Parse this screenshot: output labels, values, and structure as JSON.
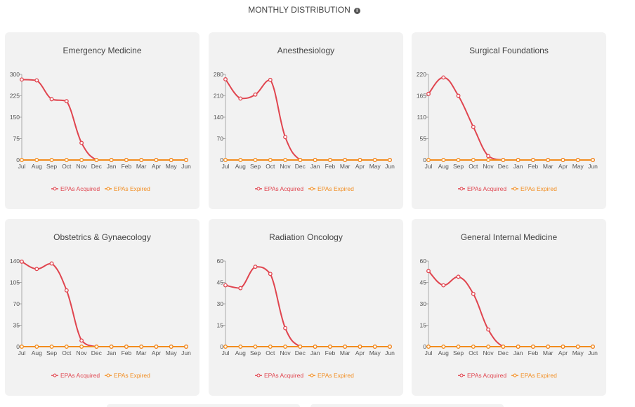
{
  "header": {
    "title": "MONTHLY DISTRIBUTION",
    "info_icon": "info-circle-icon"
  },
  "colors": {
    "acquired": "#e0454f",
    "expired": "#f28c1e"
  },
  "chart_data": [
    {
      "type": "line",
      "title": "Emergency Medicine",
      "categories": [
        "Jul",
        "Aug",
        "Sep",
        "Oct",
        "Nov",
        "Dec",
        "Jan",
        "Feb",
        "Mar",
        "Apr",
        "May",
        "Jun"
      ],
      "ylim": [
        0,
        300
      ],
      "yticks": [
        "0",
        "75",
        "150",
        "225",
        "300"
      ],
      "series": [
        {
          "name": "EPAs Acquired",
          "values": [
            282,
            279,
            213,
            206,
            60,
            0,
            0,
            0,
            0,
            0,
            0,
            0
          ]
        },
        {
          "name": "EPAs Expired",
          "values": [
            0,
            0,
            0,
            0,
            0,
            0,
            0,
            0,
            0,
            0,
            0,
            0
          ]
        }
      ]
    },
    {
      "type": "line",
      "title": "Anesthesiology",
      "categories": [
        "Jul",
        "Aug",
        "Sep",
        "Oct",
        "Nov",
        "Dec",
        "Jan",
        "Feb",
        "Mar",
        "Apr",
        "May",
        "Jun"
      ],
      "ylim": [
        0,
        280
      ],
      "yticks": [
        "0",
        "70",
        "140",
        "210",
        "280"
      ],
      "series": [
        {
          "name": "EPAs Acquired",
          "values": [
            264,
            201,
            214,
            262,
            75,
            0,
            0,
            0,
            0,
            0,
            0,
            0
          ]
        },
        {
          "name": "EPAs Expired",
          "values": [
            0,
            0,
            0,
            0,
            0,
            0,
            0,
            0,
            0,
            0,
            0,
            0
          ]
        }
      ]
    },
    {
      "type": "line",
      "title": "Surgical Foundations",
      "categories": [
        "Jul",
        "Aug",
        "Sep",
        "Oct",
        "Nov",
        "Dec",
        "Jan",
        "Feb",
        "Mar",
        "Apr",
        "May",
        "Jun"
      ],
      "ylim": [
        0,
        220
      ],
      "yticks": [
        "0",
        "55",
        "110",
        "165",
        "220"
      ],
      "series": [
        {
          "name": "EPAs Acquired",
          "values": [
            170,
            212,
            165,
            85,
            10,
            0,
            0,
            0,
            0,
            0,
            0,
            0
          ]
        },
        {
          "name": "EPAs Expired",
          "values": [
            0,
            0,
            0,
            0,
            0,
            0,
            0,
            0,
            0,
            0,
            0,
            0
          ]
        }
      ]
    },
    {
      "type": "line",
      "title": "Obstetrics & Gynaecology",
      "categories": [
        "Jul",
        "Aug",
        "Sep",
        "Oct",
        "Nov",
        "Dec",
        "Jan",
        "Feb",
        "Mar",
        "Apr",
        "May",
        "Jun"
      ],
      "ylim": [
        0,
        140
      ],
      "yticks": [
        "0",
        "35",
        "70",
        "105",
        "140"
      ],
      "series": [
        {
          "name": "EPAs Acquired",
          "values": [
            139,
            127,
            136,
            92,
            10,
            0,
            0,
            0,
            0,
            0,
            0,
            0
          ]
        },
        {
          "name": "EPAs Expired",
          "values": [
            0,
            0,
            0,
            0,
            0,
            0,
            0,
            0,
            0,
            0,
            0,
            0
          ]
        }
      ]
    },
    {
      "type": "line",
      "title": "Radiation Oncology",
      "categories": [
        "Jul",
        "Aug",
        "Sep",
        "Oct",
        "Nov",
        "Dec",
        "Jan",
        "Feb",
        "Mar",
        "Apr",
        "May",
        "Jun"
      ],
      "ylim": [
        0,
        60
      ],
      "yticks": [
        "0",
        "15",
        "30",
        "45",
        "60"
      ],
      "series": [
        {
          "name": "EPAs Acquired",
          "values": [
            43,
            41,
            56,
            51,
            13,
            0,
            0,
            0,
            0,
            0,
            0,
            0
          ]
        },
        {
          "name": "EPAs Expired",
          "values": [
            0,
            0,
            0,
            0,
            0,
            0,
            0,
            0,
            0,
            0,
            0,
            0
          ]
        }
      ]
    },
    {
      "type": "line",
      "title": "General Internal Medicine",
      "categories": [
        "Jul",
        "Aug",
        "Sep",
        "Oct",
        "Nov",
        "Dec",
        "Jan",
        "Feb",
        "Mar",
        "Apr",
        "May",
        "Jun"
      ],
      "ylim": [
        0,
        60
      ],
      "yticks": [
        "0",
        "15",
        "30",
        "45",
        "60"
      ],
      "series": [
        {
          "name": "EPAs Acquired",
          "values": [
            53,
            43,
            49,
            37,
            12,
            0,
            0,
            0,
            0,
            0,
            0,
            0
          ]
        },
        {
          "name": "EPAs Expired",
          "values": [
            0,
            0,
            0,
            0,
            0,
            0,
            0,
            0,
            0,
            0,
            0,
            0
          ]
        }
      ]
    }
  ]
}
